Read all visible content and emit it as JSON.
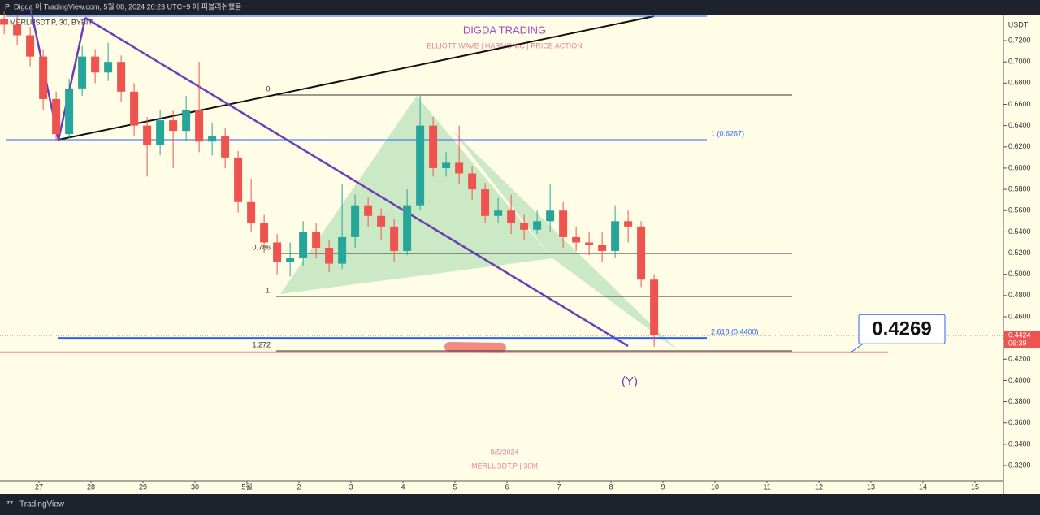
{
  "header": "P_Digda 이 TradingView.com, 5월 08, 2024 20:23 UTC+9 에 퍼블리쉬했음",
  "footer": "TradingView",
  "chart_data": {
    "type": "candlestick",
    "symbol": "MERLUSDT.P, 30, BYBIT",
    "title": "DIGDA TRADING",
    "subtitle": "ELLIOTT WAVE   |   HARMONIC   |   PRICE ACTION",
    "currency": "USDT",
    "annotations": [
      "(Y)",
      "8/5/2024",
      "MERLUSDT.P  |  30M"
    ],
    "up_color": "#26a69a",
    "down_color": "#ef5350",
    "xlim": [
      26.25,
      45.547
    ],
    "xticks": [
      27,
      28,
      29,
      30,
      {
        "value": 31,
        "label": "5월"
      },
      {
        "value": 32,
        "label": "2"
      },
      {
        "value": 33,
        "label": "3"
      },
      {
        "value": 34,
        "label": "4"
      },
      {
        "value": 35,
        "label": "5"
      },
      {
        "value": 36,
        "label": "6"
      },
      {
        "value": 37,
        "label": "7"
      },
      {
        "value": 38,
        "label": "8"
      },
      {
        "value": 39,
        "label": "9"
      },
      {
        "value": 40,
        "label": "10"
      },
      {
        "value": 41,
        "label": "11"
      },
      {
        "value": 42,
        "label": "12"
      },
      {
        "value": 43,
        "label": "13"
      },
      {
        "value": 44,
        "label": "14"
      },
      {
        "value": 45,
        "label": "15"
      }
    ],
    "ylim": [
      0.3055,
      0.7445
    ],
    "yticks": [
      {
        "value": 0.32,
        "label": "0.3200"
      },
      {
        "value": 0.34,
        "label": "0.3400"
      },
      {
        "value": 0.36,
        "label": "0.3600"
      },
      {
        "value": 0.38,
        "label": "0.3800"
      },
      {
        "value": 0.4,
        "label": "0.4000"
      },
      {
        "value": 0.42,
        "label": "0.4200"
      },
      {
        "value": 0.44,
        "label": "0.4400"
      },
      {
        "value": 0.46,
        "label": "0.4600"
      },
      {
        "value": 0.48,
        "label": "0.4800"
      },
      {
        "value": 0.5,
        "label": "0.5000"
      },
      {
        "value": 0.52,
        "label": "0.5200"
      },
      {
        "value": 0.54,
        "label": "0.5400"
      },
      {
        "value": 0.56,
        "label": "0.5600"
      },
      {
        "value": 0.58,
        "label": "0.5800"
      },
      {
        "value": 0.6,
        "label": "0.6000"
      },
      {
        "value": 0.62,
        "label": "0.6200"
      },
      {
        "value": 0.64,
        "label": "0.6400"
      },
      {
        "value": 0.66,
        "label": "0.6600"
      },
      {
        "value": 0.68,
        "label": "0.6800"
      },
      {
        "value": 0.7,
        "label": "0.7000"
      },
      {
        "value": 0.72,
        "label": "0.7200"
      }
    ],
    "x": [
      26.33,
      26.58,
      26.83,
      27.08,
      27.33,
      27.58,
      27.83,
      28.08,
      28.33,
      28.58,
      28.83,
      29.08,
      29.33,
      29.58,
      29.83,
      30.08,
      30.33,
      30.58,
      30.83,
      31.08,
      31.33,
      31.58,
      31.83,
      32.08,
      32.33,
      32.58,
      32.83,
      33.08,
      33.33,
      33.58,
      33.83,
      34.08,
      34.33,
      34.58,
      34.83,
      35.08,
      35.33,
      35.58,
      35.83,
      36.08,
      36.33,
      36.58,
      36.83,
      37.08,
      37.33,
      37.58,
      37.83,
      38.08,
      38.33,
      38.58,
      38.83
    ],
    "open": [
      0.74,
      0.735,
      0.725,
      0.705,
      0.665,
      0.632,
      0.675,
      0.705,
      0.69,
      0.7,
      0.672,
      0.64,
      0.622,
      0.645,
      0.635,
      0.655,
      0.625,
      0.63,
      0.61,
      0.568,
      0.548,
      0.53,
      0.512,
      0.515,
      0.54,
      0.525,
      0.51,
      0.535,
      0.565,
      0.555,
      0.545,
      0.522,
      0.565,
      0.64,
      0.6,
      0.605,
      0.595,
      0.58,
      0.555,
      0.56,
      0.548,
      0.542,
      0.55,
      0.56,
      0.535,
      0.53,
      0.528,
      0.522,
      0.55,
      0.545,
      0.495
    ],
    "high": [
      0.748,
      0.744,
      0.733,
      0.712,
      0.672,
      0.684,
      0.715,
      0.712,
      0.718,
      0.706,
      0.68,
      0.648,
      0.655,
      0.654,
      0.668,
      0.7,
      0.642,
      0.638,
      0.616,
      0.59,
      0.556,
      0.538,
      0.53,
      0.55,
      0.548,
      0.532,
      0.585,
      0.575,
      0.572,
      0.562,
      0.552,
      0.58,
      0.668,
      0.648,
      0.615,
      0.64,
      0.602,
      0.586,
      0.572,
      0.575,
      0.556,
      0.56,
      0.585,
      0.568,
      0.545,
      0.54,
      0.54,
      0.565,
      0.56,
      0.55,
      0.5
    ],
    "low": [
      0.726,
      0.716,
      0.696,
      0.655,
      0.626,
      0.628,
      0.668,
      0.68,
      0.682,
      0.662,
      0.63,
      0.592,
      0.612,
      0.6,
      0.626,
      0.615,
      0.612,
      0.6,
      0.558,
      0.54,
      0.52,
      0.5,
      0.498,
      0.508,
      0.515,
      0.502,
      0.505,
      0.525,
      0.545,
      0.532,
      0.512,
      0.518,
      0.56,
      0.592,
      0.592,
      0.585,
      0.57,
      0.548,
      0.548,
      0.538,
      0.532,
      0.538,
      0.54,
      0.525,
      0.522,
      0.518,
      0.512,
      0.515,
      0.53,
      0.488,
      0.432
    ],
    "close": [
      0.735,
      0.725,
      0.705,
      0.665,
      0.632,
      0.675,
      0.705,
      0.69,
      0.7,
      0.672,
      0.64,
      0.622,
      0.645,
      0.635,
      0.655,
      0.625,
      0.63,
      0.61,
      0.568,
      0.548,
      0.53,
      0.512,
      0.515,
      0.54,
      0.525,
      0.51,
      0.535,
      0.565,
      0.555,
      0.545,
      0.522,
      0.565,
      0.64,
      0.6,
      0.605,
      0.595,
      0.58,
      0.555,
      0.56,
      0.548,
      0.542,
      0.55,
      0.56,
      0.535,
      0.53,
      0.528,
      0.522,
      0.55,
      0.545,
      0.495,
      0.4424
    ],
    "levels": [
      {
        "label": "0",
        "price": 0.6688,
        "color": "#333333"
      },
      {
        "label": "1 (0.6267)",
        "price": 0.6267,
        "color": "#2962ff"
      },
      {
        "label": "0.786",
        "price": 0.5196,
        "color": "#333333"
      },
      {
        "label": "1",
        "price": 0.4791,
        "color": "#333333"
      },
      {
        "label": "2.618 (0.4400)",
        "price": 0.44,
        "color": "#2962ff"
      },
      {
        "label": "1.272",
        "price": 0.4279,
        "color": "#333333"
      }
    ],
    "last_price": {
      "value": 0.4424,
      "countdown": "06:39"
    },
    "callout": {
      "value": 0.4269
    }
  }
}
